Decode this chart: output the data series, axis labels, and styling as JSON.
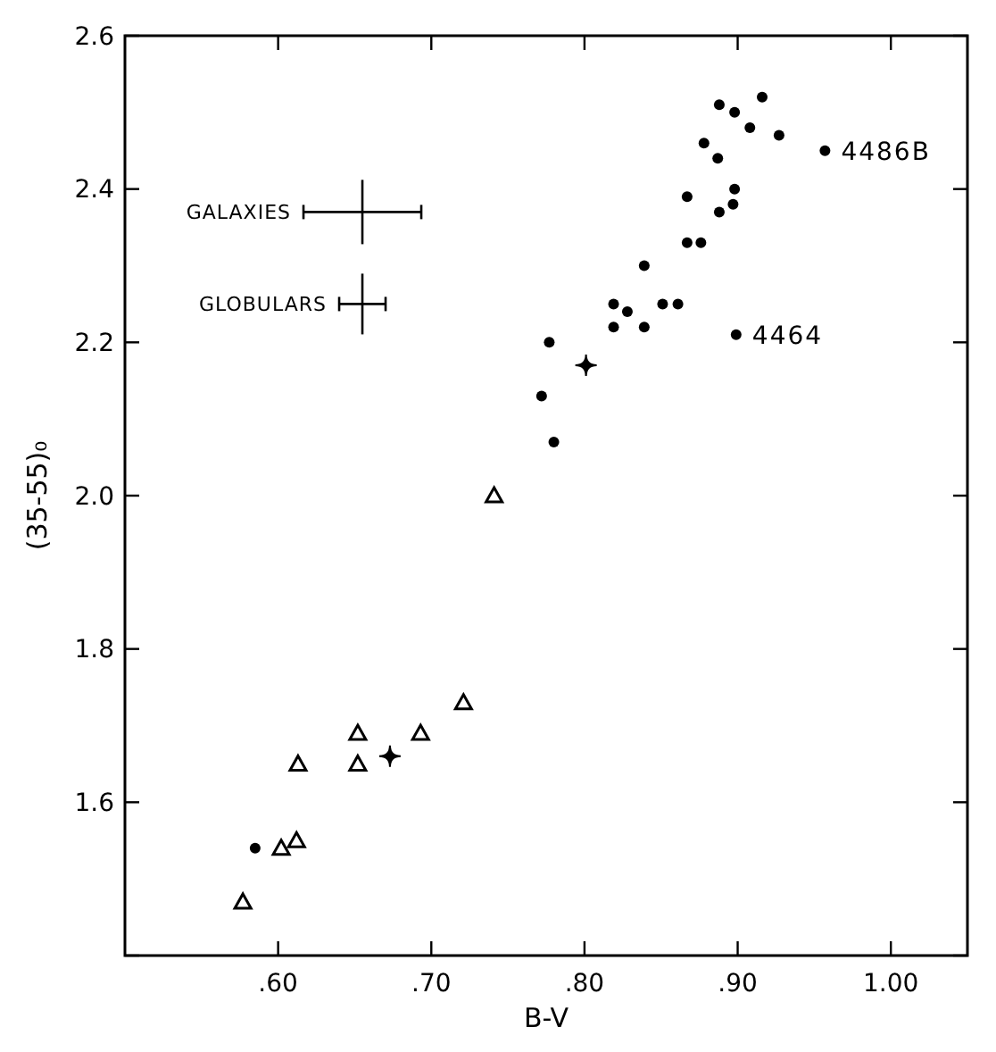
{
  "chart_data": {
    "type": "scatter",
    "xlabel": "B-V",
    "ylabel": "(35-55)₀",
    "xlim": [
      0.5,
      1.05
    ],
    "xticks": [
      {
        "value": 0.6,
        "label": ".60"
      },
      {
        "value": 0.7,
        "label": ".70"
      },
      {
        "value": 0.8,
        "label": ".80"
      },
      {
        "value": 0.9,
        "label": ".90"
      },
      {
        "value": 1.0,
        "label": "1.00"
      }
    ],
    "ylim": [
      1.4,
      2.6
    ],
    "yticks": [
      {
        "value": 1.4,
        "label": null
      },
      {
        "value": 1.6,
        "label": "1.6"
      },
      {
        "value": 1.8,
        "label": "1.8"
      },
      {
        "value": 2.0,
        "label": "2.0"
      },
      {
        "value": 2.2,
        "label": "2.2"
      },
      {
        "value": 2.4,
        "label": "2.4"
      },
      {
        "value": 2.6,
        "label": "2.6"
      }
    ],
    "grid": false,
    "series": [
      {
        "color": "#000000",
        "marker": "circle",
        "x": [
          0.888,
          0.898,
          0.916,
          0.908,
          0.927,
          0.878,
          0.887,
          0.957,
          0.898,
          0.867,
          0.897,
          0.888,
          0.867,
          0.876,
          0.839,
          0.819,
          0.828,
          0.851,
          0.861,
          0.819,
          0.839,
          0.899,
          0.777,
          0.772,
          0.78,
          0.585
        ],
        "values": [
          2.51,
          2.5,
          2.52,
          2.48,
          2.47,
          2.46,
          2.44,
          2.45,
          2.4,
          2.39,
          2.38,
          2.37,
          2.33,
          2.33,
          2.3,
          2.25,
          2.24,
          2.25,
          2.25,
          2.22,
          2.22,
          2.21,
          2.2,
          2.13,
          2.07,
          1.54
        ]
      },
      {
        "color": "#000000",
        "marker": "triangle",
        "x": [
          0.741,
          0.577,
          0.602,
          0.612,
          0.613,
          0.652,
          0.652,
          0.693,
          0.721
        ],
        "values": [
          2.0,
          1.47,
          1.54,
          1.55,
          1.65,
          1.69,
          1.65,
          1.69,
          1.73
        ]
      },
      {
        "color": "#000000",
        "marker": "star",
        "x": [
          0.801,
          0.673
        ],
        "values": [
          2.17,
          1.66
        ]
      }
    ],
    "annotations": [
      {
        "text": "4486B",
        "x": 0.957,
        "y": 2.45
      },
      {
        "text": "4464",
        "x": 0.899,
        "y": 2.21
      },
      "GALAXIES",
      "GLOBULARS"
    ]
  }
}
